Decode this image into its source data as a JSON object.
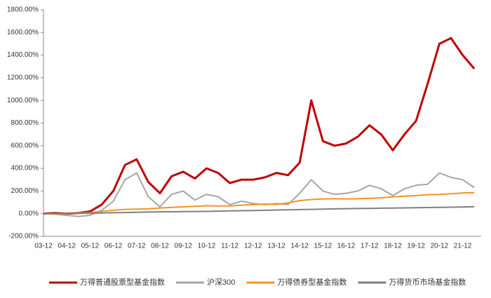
{
  "chart_data": {
    "type": "line",
    "categories": [
      "03-12",
      null,
      "04-12",
      null,
      "05-12",
      null,
      "06-12",
      null,
      "07-12",
      null,
      "08-12",
      null,
      "09-12",
      null,
      "10-12",
      null,
      "11-12",
      null,
      "12-12",
      null,
      "13-12",
      null,
      "14-12",
      null,
      "15-12",
      null,
      "16-12",
      null,
      "17-12",
      null,
      "18-12",
      null,
      "19-12",
      null,
      "20-12",
      null,
      "21-12",
      null
    ],
    "series": [
      {
        "name": "万得普通股票型基金指数",
        "color": "#c00000",
        "values": [
          0,
          5,
          0,
          5,
          20,
          80,
          200,
          430,
          480,
          280,
          180,
          330,
          370,
          310,
          400,
          360,
          270,
          300,
          300,
          320,
          360,
          340,
          450,
          1000,
          640,
          600,
          620,
          680,
          780,
          700,
          560,
          700,
          820,
          1150,
          1500,
          1550,
          1400,
          1280
        ]
      },
      {
        "name": "沪深300",
        "color": "#a6a6a6",
        "values": [
          0,
          -5,
          -15,
          -25,
          -15,
          30,
          110,
          300,
          360,
          150,
          60,
          170,
          200,
          120,
          170,
          150,
          80,
          110,
          90,
          80,
          90,
          80,
          180,
          300,
          200,
          170,
          180,
          200,
          250,
          220,
          160,
          220,
          250,
          260,
          360,
          320,
          300,
          230
        ]
      },
      {
        "name": "万得债券型基金指数",
        "color": "#f7941d",
        "values": [
          0,
          -2,
          0,
          5,
          10,
          20,
          30,
          38,
          40,
          42,
          50,
          55,
          60,
          65,
          70,
          68,
          68,
          75,
          80,
          85,
          82,
          95,
          115,
          125,
          130,
          132,
          130,
          132,
          135,
          140,
          148,
          155,
          160,
          168,
          170,
          175,
          182,
          185
        ]
      },
      {
        "name": "万得货币市场基金指数",
        "color": "#7f7f7f",
        "values": [
          0,
          1,
          2,
          3,
          4,
          6,
          8,
          10,
          12,
          14,
          16,
          17,
          18,
          19,
          20,
          22,
          24,
          26,
          28,
          30,
          32,
          34,
          36,
          38,
          40,
          42,
          44,
          45,
          46,
          48,
          49,
          51,
          52,
          54,
          55,
          57,
          59,
          61
        ]
      }
    ],
    "ylim": [
      -200,
      1800
    ],
    "yticks": [
      {
        "value": -200,
        "label": "-200.00%"
      },
      {
        "value": 0,
        "label": "0.00%"
      },
      {
        "value": 200,
        "label": "200.00%"
      },
      {
        "value": 400,
        "label": "400.00%"
      },
      {
        "value": 600,
        "label": "600.00%"
      },
      {
        "value": 800,
        "label": "800.00%"
      },
      {
        "value": 1000,
        "label": "1000.00%"
      },
      {
        "value": 1200,
        "label": "1200.00%"
      },
      {
        "value": 1400,
        "label": "1400.00%"
      },
      {
        "value": 1600,
        "label": "1600.00%"
      },
      {
        "value": 1800,
        "label": "1800.00%"
      }
    ],
    "grid": false,
    "legend": "bottom"
  }
}
